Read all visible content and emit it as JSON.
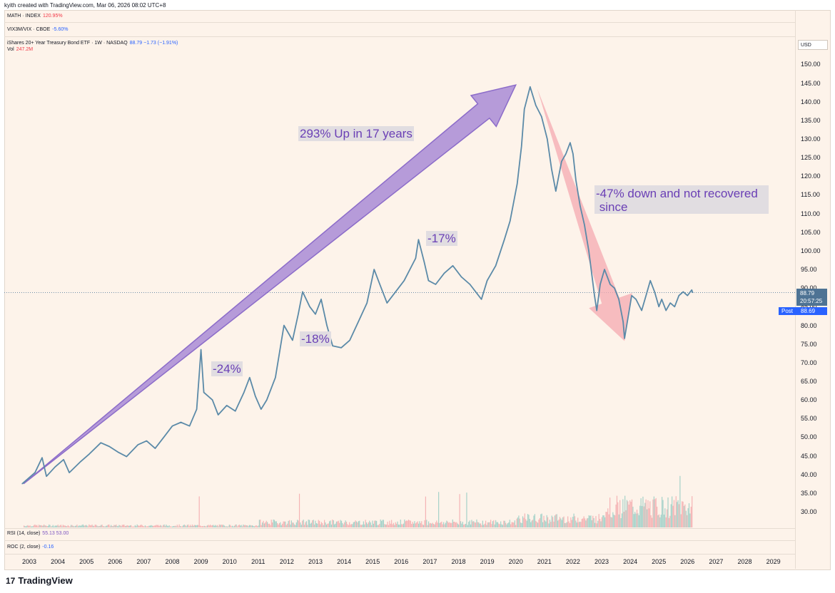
{
  "header": {
    "credit": "kyith created with TradingView.com, Mar 06, 2026 08:02 UTC+8"
  },
  "indicators": [
    {
      "name": "MATH · INDEX",
      "value": "120.95%",
      "color": "#f23645"
    },
    {
      "name": "VIX3M/VIX · CBOE",
      "value": "-5.60%",
      "color": "#2962ff"
    },
    {
      "name": "iShares 20+ Year Treasury Bond ETF · 1W · NASDAQ",
      "value": "88.79 −1.73 (−1.91%)",
      "color": "#2962ff"
    },
    {
      "name": "Vol",
      "value": "247.2M",
      "color": "#f23645"
    }
  ],
  "lower_panes": [
    {
      "name": "RSI (14, close)",
      "value": "55.13 53.00",
      "color": "#7e57c2"
    },
    {
      "name": "ROC (2, close)",
      "value": "-0.16",
      "color": "#2962ff"
    }
  ],
  "price_scale": {
    "currency": "USD",
    "last_price": "88.79",
    "countdown": "20:57:25",
    "post_label": "Post",
    "post_price": "88.69"
  },
  "annotations": {
    "up": "293% Up in 17 years",
    "down_line1": "-47% down and not recovered",
    "down_line2": " since",
    "dd2008": "-24%",
    "dd2012": "-18%",
    "dd2016": "-17%"
  },
  "brand": {
    "name": "TradingView",
    "logo_glyph": "17"
  },
  "colors": {
    "price_line": "#5b8aa8",
    "up_arrow": "#a98bd6",
    "down_arrow": "#f4aab0",
    "background": "#fdf3ea"
  },
  "chart_data": {
    "type": "line",
    "title": "iShares 20+ Year Treasury Bond ETF · 1W · NASDAQ",
    "ylabel": "USD",
    "ylim": [
      25,
      155
    ],
    "xlim": [
      2002.6,
      2029.5
    ],
    "x_ticks": [
      "2003",
      "2004",
      "2005",
      "2006",
      "2007",
      "2008",
      "2009",
      "2010",
      "2011",
      "2012",
      "2013",
      "2014",
      "2015",
      "2016",
      "2017",
      "2018",
      "2019",
      "2020",
      "2021",
      "2022",
      "2023",
      "2024",
      "2025",
      "2026",
      "2027",
      "2028",
      "2029"
    ],
    "y_ticks": [
      "30.00",
      "35.00",
      "40.00",
      "45.00",
      "50.00",
      "55.00",
      "60.00",
      "65.00",
      "70.00",
      "75.00",
      "80.00",
      "85.00",
      "90.00",
      "95.00",
      "100.00",
      "105.00",
      "110.00",
      "115.00",
      "120.00",
      "125.00",
      "130.00",
      "135.00",
      "140.00",
      "145.00",
      "150.00"
    ],
    "series": [
      {
        "values": [
          [
            2002.75,
            37.5
          ],
          [
            2003.2,
            40.5
          ],
          [
            2003.45,
            44.5
          ],
          [
            2003.6,
            39.5
          ],
          [
            2003.9,
            42
          ],
          [
            2004.2,
            44
          ],
          [
            2004.4,
            40.5
          ],
          [
            2004.8,
            43.5
          ],
          [
            2005.1,
            45.5
          ],
          [
            2005.5,
            48.5
          ],
          [
            2005.8,
            47.5
          ],
          [
            2006.1,
            46
          ],
          [
            2006.4,
            44.8
          ],
          [
            2006.8,
            48
          ],
          [
            2007.1,
            49
          ],
          [
            2007.4,
            47
          ],
          [
            2007.7,
            50
          ],
          [
            2008.0,
            53
          ],
          [
            2008.3,
            54
          ],
          [
            2008.6,
            53
          ],
          [
            2008.85,
            57.5
          ],
          [
            2008.95,
            68
          ],
          [
            2009.0,
            73.5
          ],
          [
            2009.1,
            62
          ],
          [
            2009.4,
            60
          ],
          [
            2009.6,
            56
          ],
          [
            2009.9,
            58.5
          ],
          [
            2010.2,
            57
          ],
          [
            2010.5,
            62
          ],
          [
            2010.7,
            66
          ],
          [
            2010.9,
            61
          ],
          [
            2011.1,
            57.5
          ],
          [
            2011.3,
            60
          ],
          [
            2011.6,
            66
          ],
          [
            2011.75,
            73
          ],
          [
            2011.9,
            80
          ],
          [
            2012.2,
            76
          ],
          [
            2012.4,
            83
          ],
          [
            2012.55,
            89
          ],
          [
            2012.8,
            85
          ],
          [
            2013.0,
            83
          ],
          [
            2013.2,
            87
          ],
          [
            2013.4,
            80
          ],
          [
            2013.6,
            74.5
          ],
          [
            2013.9,
            74
          ],
          [
            2014.2,
            76
          ],
          [
            2014.5,
            81
          ],
          [
            2014.8,
            86
          ],
          [
            2015.05,
            95
          ],
          [
            2015.3,
            90
          ],
          [
            2015.5,
            86
          ],
          [
            2015.8,
            89
          ],
          [
            2016.1,
            92
          ],
          [
            2016.5,
            98
          ],
          [
            2016.6,
            103
          ],
          [
            2016.8,
            97
          ],
          [
            2016.95,
            92
          ],
          [
            2017.2,
            91
          ],
          [
            2017.5,
            94
          ],
          [
            2017.8,
            96
          ],
          [
            2018.1,
            93
          ],
          [
            2018.4,
            91
          ],
          [
            2018.8,
            87
          ],
          [
            2019.0,
            92
          ],
          [
            2019.3,
            96
          ],
          [
            2019.6,
            103
          ],
          [
            2019.8,
            108
          ],
          [
            2020.05,
            118
          ],
          [
            2020.2,
            128
          ],
          [
            2020.3,
            138
          ],
          [
            2020.5,
            144
          ],
          [
            2020.7,
            139
          ],
          [
            2020.9,
            136
          ],
          [
            2021.1,
            130
          ],
          [
            2021.25,
            122
          ],
          [
            2021.4,
            116
          ],
          [
            2021.6,
            124
          ],
          [
            2021.75,
            126
          ],
          [
            2021.9,
            129
          ],
          [
            2022.0,
            126
          ],
          [
            2022.1,
            119
          ],
          [
            2022.25,
            112
          ],
          [
            2022.4,
            107
          ],
          [
            2022.55,
            100
          ],
          [
            2022.75,
            88
          ],
          [
            2022.83,
            84
          ],
          [
            2022.95,
            91
          ],
          [
            2023.1,
            95
          ],
          [
            2023.3,
            91
          ],
          [
            2023.45,
            90
          ],
          [
            2023.6,
            87
          ],
          [
            2023.75,
            81
          ],
          [
            2023.8,
            76.5
          ],
          [
            2023.92,
            82
          ],
          [
            2024.05,
            88
          ],
          [
            2024.2,
            87
          ],
          [
            2024.4,
            84
          ],
          [
            2024.55,
            88
          ],
          [
            2024.7,
            92
          ],
          [
            2024.85,
            89
          ],
          [
            2025.0,
            85
          ],
          [
            2025.1,
            87
          ],
          [
            2025.25,
            84
          ],
          [
            2025.4,
            86
          ],
          [
            2025.55,
            85
          ],
          [
            2025.7,
            88
          ],
          [
            2025.85,
            89
          ],
          [
            2026.0,
            88
          ],
          [
            2026.15,
            89.5
          ],
          [
            2026.18,
            88.79
          ]
        ]
      }
    ],
    "grid": false
  }
}
